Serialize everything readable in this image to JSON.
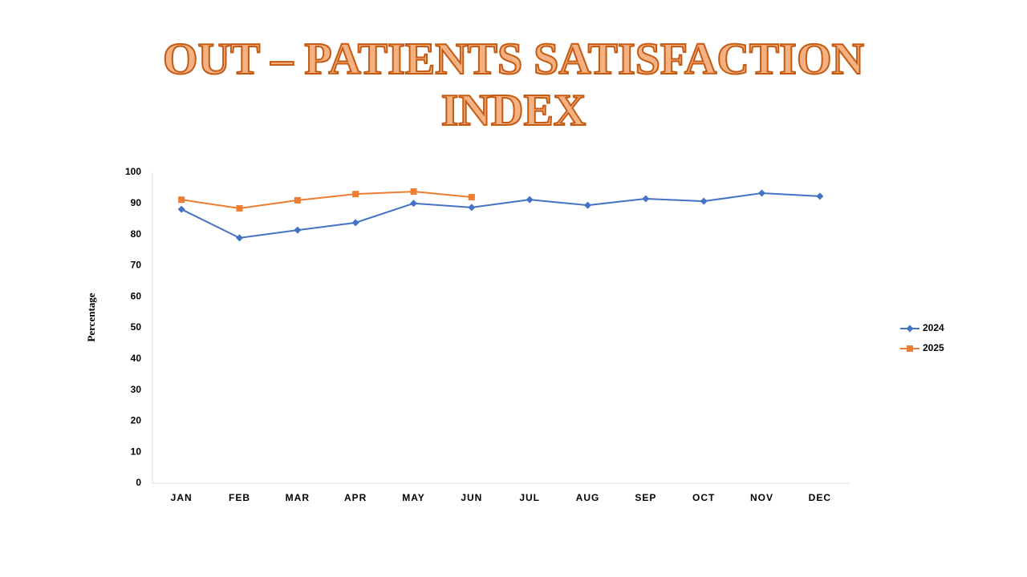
{
  "chart_data": {
    "type": "line",
    "title": "OUT – PATIENTS SATISFACTION INDEX",
    "ylabel": "Percentage",
    "categories": [
      "JAN",
      "FEB",
      "MAR",
      "APR",
      "MAY",
      "JUN",
      "JUL",
      "AUG",
      "SEP",
      "OCT",
      "NOV",
      "DEC"
    ],
    "series": [
      {
        "name": "2024",
        "color": "#4472c4",
        "marker": "diamond",
        "values": [
          88.1,
          78.9,
          81.4,
          83.8,
          90.0,
          88.7,
          91.2,
          89.4,
          91.5,
          90.7,
          93.3,
          92.3
        ]
      },
      {
        "name": "2025",
        "color": "#ed7d31",
        "marker": "square",
        "values": [
          91.2,
          88.4,
          91.0,
          93.0,
          93.8,
          92.0,
          null,
          null,
          null,
          null,
          null,
          null
        ]
      }
    ],
    "ylim": [
      0,
      100
    ],
    "yticks": [
      0,
      10,
      20,
      30,
      40,
      50,
      60,
      70,
      80,
      90,
      100
    ],
    "grid": false,
    "legend": "right"
  }
}
